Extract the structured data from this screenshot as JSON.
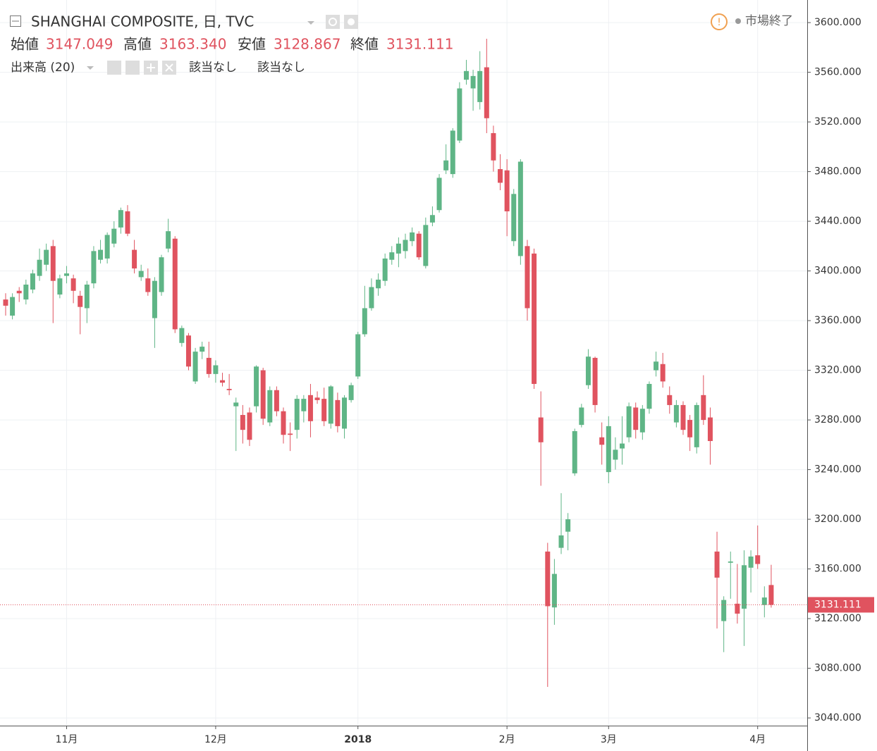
{
  "chart_data": {
    "type": "candlestick",
    "title": "SHANGHAI COMPOSITE, 日, TVC",
    "ohlc_legend": [
      {
        "label": "始値",
        "value": "3147.049"
      },
      {
        "label": "高値",
        "value": "3163.340"
      },
      {
        "label": "安値",
        "value": "3128.867"
      },
      {
        "label": "終値",
        "value": "3131.111"
      }
    ],
    "volume_legend": {
      "label": "出来高 (20)",
      "values": [
        "該当なし",
        "該当なし"
      ]
    },
    "status": "市場終了",
    "up_color": "#5fb586",
    "down_color": "#e0535f",
    "categories": [
      null,
      null,
      null,
      null,
      null,
      null,
      null,
      null,
      null,
      "11月",
      null,
      null,
      null,
      null,
      null,
      null,
      null,
      null,
      null,
      null,
      null,
      null,
      null,
      null,
      null,
      null,
      null,
      null,
      null,
      null,
      null,
      "12月",
      null,
      null,
      null,
      null,
      null,
      null,
      null,
      null,
      null,
      null,
      null,
      null,
      null,
      null,
      null,
      null,
      null,
      null,
      null,
      null,
      "2018",
      null,
      null,
      null,
      null,
      null,
      null,
      null,
      null,
      null,
      null,
      null,
      null,
      null,
      null,
      null,
      null,
      null,
      null,
      null,
      null,
      null,
      "2月",
      null,
      null,
      null,
      null,
      null,
      null,
      null,
      null,
      null,
      null,
      null,
      null,
      null,
      null,
      "3月",
      null,
      null,
      null,
      null,
      null,
      null,
      null,
      null,
      null,
      null,
      null,
      null,
      null,
      null,
      null,
      null,
      null,
      null,
      null,
      null,
      null,
      "4月",
      null,
      null
    ],
    "open": [
      3377,
      3364,
      3384,
      3377,
      3385,
      3396,
      3405,
      3420,
      3381,
      3396,
      3394,
      3380,
      3370,
      3390,
      3409,
      3410,
      3422,
      3435,
      3448,
      3417,
      3395,
      3394,
      3362,
      3383,
      3418,
      3426,
      3342,
      3348,
      3311,
      3335,
      3330,
      3317,
      3312,
      3305,
      3291,
      3284,
      3286,
      3291,
      3320,
      3278,
      3304,
      3287,
      3269,
      3272,
      3287,
      3300,
      3298,
      3297,
      3277,
      3296,
      3273,
      3296,
      3315,
      3349,
      3370,
      3386,
      3392,
      3409,
      3414,
      3416,
      3424,
      3430,
      3404,
      3439,
      3449,
      3481,
      3478,
      3505,
      3554,
      3547,
      3536,
      3564,
      3511,
      3482,
      3481,
      3424,
      3412,
      3420,
      3414,
      3282,
      3174,
      3129,
      3177,
      3190,
      3237,
      3276,
      3308,
      3330,
      3266,
      3238,
      3248,
      3257,
      3266,
      3290,
      3270,
      3289,
      3320,
      3325,
      3300,
      3278,
      3292,
      3280,
      3258,
      3300,
      3282,
      3174,
      3118,
      3165,
      3132,
      3128,
      3161,
      3171,
      3131,
      3147.049
    ],
    "high": [
      3382,
      3382,
      3387,
      3393,
      3401,
      3418,
      3422,
      3425,
      3397,
      3404,
      3397,
      3384,
      3392,
      3420,
      3425,
      3431,
      3440,
      3451,
      3453,
      3425,
      3405,
      3402,
      3395,
      3413,
      3442,
      3428,
      3356,
      3350,
      3338,
      3343,
      3343,
      3328,
      3318,
      3317,
      3298,
      3292,
      3290,
      3324,
      3322,
      3307,
      3307,
      3290,
      3278,
      3300,
      3300,
      3309,
      3303,
      3306,
      3308,
      3302,
      3300,
      3310,
      3351,
      3388,
      3394,
      3398,
      3414,
      3420,
      3427,
      3430,
      3435,
      3432,
      3443,
      3452,
      3478,
      3502,
      3515,
      3552,
      3570,
      3562,
      3577,
      3587,
      3517,
      3494,
      3490,
      3466,
      3490,
      3425,
      3418,
      3303,
      3181,
      3168,
      3221,
      3205,
      3273,
      3293,
      3337,
      3331,
      3278,
      3283,
      3266,
      3283,
      3294,
      3294,
      3292,
      3311,
      3335,
      3334,
      3307,
      3296,
      3295,
      3284,
      3294,
      3316,
      3290,
      3190,
      3138,
      3174,
      3164,
      3175,
      3175,
      3195,
      3146,
      3163.34
    ],
    "low": [
      3364,
      3361,
      3375,
      3373,
      3382,
      3392,
      3400,
      3358,
      3378,
      3390,
      3374,
      3349,
      3358,
      3386,
      3406,
      3406,
      3419,
      3430,
      3428,
      3398,
      3392,
      3380,
      3338,
      3380,
      3415,
      3350,
      3339,
      3320,
      3309,
      3329,
      3314,
      3310,
      3307,
      3300,
      3255,
      3261,
      3259,
      3286,
      3276,
      3275,
      3283,
      3261,
      3255,
      3265,
      3278,
      3266,
      3293,
      3275,
      3273,
      3270,
      3265,
      3294,
      3313,
      3347,
      3368,
      3380,
      3388,
      3405,
      3403,
      3410,
      3420,
      3409,
      3402,
      3436,
      3447,
      3478,
      3475,
      3503,
      3550,
      3529,
      3530,
      3511,
      3480,
      3465,
      3428,
      3420,
      3405,
      3360,
      3305,
      3227,
      3065,
      3115,
      3172,
      3175,
      3235,
      3274,
      3305,
      3286,
      3244,
      3229,
      3240,
      3244,
      3262,
      3265,
      3264,
      3285,
      3315,
      3306,
      3285,
      3274,
      3268,
      3255,
      3253,
      3276,
      3244,
      3112,
      3093,
      3136,
      3116,
      3098,
      3141,
      3160,
      3121,
      3128.867
    ],
    "close": [
      3372,
      3379,
      3382,
      3389,
      3398,
      3409,
      3417,
      3392,
      3394,
      3398,
      3384,
      3371,
      3389,
      3416,
      3417,
      3429,
      3434,
      3449,
      3430,
      3402,
      3400,
      3383,
      3392,
      3411,
      3432,
      3353,
      3354,
      3323,
      3335,
      3339,
      3317,
      3324,
      3310,
      3304,
      3294,
      3272,
      3264,
      3323,
      3281,
      3304,
      3287,
      3268,
      3268,
      3297,
      3297,
      3279,
      3296,
      3279,
      3307,
      3275,
      3298,
      3308,
      3349,
      3370,
      3387,
      3393,
      3410,
      3415,
      3422,
      3425,
      3431,
      3411,
      3437,
      3445,
      3475,
      3489,
      3513,
      3547,
      3561,
      3557,
      3561,
      3523,
      3489,
      3471,
      3448,
      3462,
      3488,
      3370,
      3309,
      3262,
      3130,
      3156,
      3187,
      3200,
      3271,
      3290,
      3331,
      3292,
      3260,
      3275,
      3256,
      3261,
      3291,
      3272,
      3289,
      3309,
      3327,
      3311,
      3292,
      3292,
      3272,
      3266,
      3292,
      3280,
      3263,
      3153,
      3135,
      3166,
      3124,
      3163,
      3170,
      3164,
      3137,
      3131.111
    ],
    "ylim": [
      3033.8,
      3618.2
    ],
    "yticks": [
      {
        "value": 3040,
        "label": "3040.000"
      },
      {
        "value": 3080,
        "label": "3080.000"
      },
      {
        "value": 3120,
        "label": "3120.000"
      },
      {
        "value": 3160,
        "label": "3160.000"
      },
      {
        "value": 3200,
        "label": "3200.000"
      },
      {
        "value": 3240,
        "label": "3240.000"
      },
      {
        "value": 3280,
        "label": "3280.000"
      },
      {
        "value": 3320,
        "label": "3320.000"
      },
      {
        "value": 3360,
        "label": "3360.000"
      },
      {
        "value": 3400,
        "label": "3400.000"
      },
      {
        "value": 3440,
        "label": "3440.000"
      },
      {
        "value": 3480,
        "label": "3480.000"
      },
      {
        "value": 3520,
        "label": "3520.000"
      },
      {
        "value": 3560,
        "label": "3560.000"
      },
      {
        "value": 3600,
        "label": "3600.000"
      }
    ],
    "grid": true,
    "last_price_line": true
  }
}
